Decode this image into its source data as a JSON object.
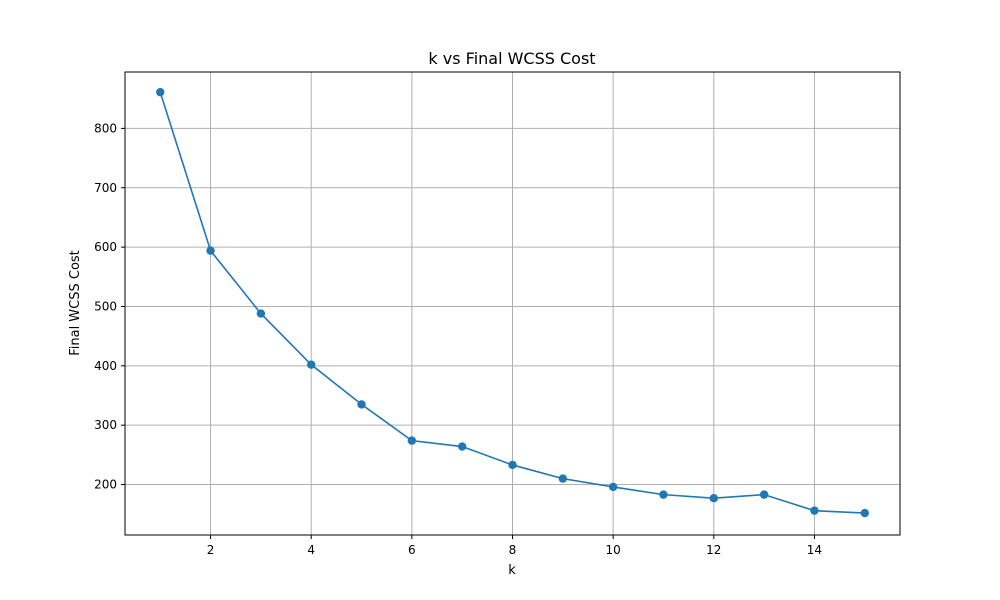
{
  "chart_data": {
    "type": "line",
    "title": "k vs Final WCSS Cost",
    "xlabel": "k",
    "ylabel": "Final WCSS Cost",
    "x": [
      1,
      2,
      3,
      4,
      5,
      6,
      7,
      8,
      9,
      10,
      11,
      12,
      13,
      14,
      15
    ],
    "values": [
      861,
      594,
      488,
      402,
      335,
      274,
      264,
      233,
      210,
      196,
      183,
      177,
      183,
      156,
      152
    ],
    "xlim": [
      0.3,
      15.7
    ],
    "ylim": [
      115,
      895
    ],
    "xticks": [
      2,
      4,
      6,
      8,
      10,
      12,
      14
    ],
    "yticks": [
      200,
      300,
      400,
      500,
      600,
      700,
      800
    ],
    "grid": true,
    "series_color": "#1f77b4",
    "marker": "circle"
  }
}
